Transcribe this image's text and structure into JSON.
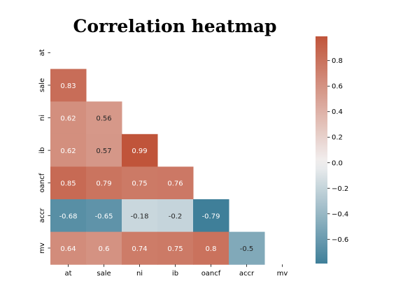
{
  "chart_data": {
    "type": "heatmap",
    "title": "Correlation heatmap",
    "xlabel": "",
    "ylabel": "",
    "variables": [
      "at",
      "sale",
      "ni",
      "ib",
      "oancf",
      "accr",
      "mv"
    ],
    "mask": "upper-triangle-including-diagonal",
    "cells": [
      {
        "row": "sale",
        "col": "at",
        "value": 0.83,
        "label": "0.83"
      },
      {
        "row": "ni",
        "col": "at",
        "value": 0.62,
        "label": "0.62"
      },
      {
        "row": "ni",
        "col": "sale",
        "value": 0.56,
        "label": "0.56"
      },
      {
        "row": "ib",
        "col": "at",
        "value": 0.62,
        "label": "0.62"
      },
      {
        "row": "ib",
        "col": "sale",
        "value": 0.57,
        "label": "0.57"
      },
      {
        "row": "ib",
        "col": "ni",
        "value": 0.99,
        "label": "0.99"
      },
      {
        "row": "oancf",
        "col": "at",
        "value": 0.85,
        "label": "0.85"
      },
      {
        "row": "oancf",
        "col": "sale",
        "value": 0.79,
        "label": "0.79"
      },
      {
        "row": "oancf",
        "col": "ni",
        "value": 0.75,
        "label": "0.75"
      },
      {
        "row": "oancf",
        "col": "ib",
        "value": 0.76,
        "label": "0.76"
      },
      {
        "row": "accr",
        "col": "at",
        "value": -0.68,
        "label": "-0.68"
      },
      {
        "row": "accr",
        "col": "sale",
        "value": -0.65,
        "label": "-0.65"
      },
      {
        "row": "accr",
        "col": "ni",
        "value": -0.18,
        "label": "-0.18"
      },
      {
        "row": "accr",
        "col": "ib",
        "value": -0.2,
        "label": "-0.2"
      },
      {
        "row": "accr",
        "col": "oancf",
        "value": -0.79,
        "label": "-0.79"
      },
      {
        "row": "mv",
        "col": "at",
        "value": 0.64,
        "label": "0.64"
      },
      {
        "row": "mv",
        "col": "sale",
        "value": 0.6,
        "label": "0.6"
      },
      {
        "row": "mv",
        "col": "ni",
        "value": 0.74,
        "label": "0.74"
      },
      {
        "row": "mv",
        "col": "ib",
        "value": 0.75,
        "label": "0.75"
      },
      {
        "row": "mv",
        "col": "oancf",
        "value": 0.8,
        "label": "0.8"
      },
      {
        "row": "mv",
        "col": "accr",
        "value": -0.5,
        "label": "-0.5"
      }
    ],
    "colorbar": {
      "range": [
        -0.79,
        0.99
      ],
      "ticks": [
        0.8,
        0.6,
        0.4,
        0.2,
        0.0,
        -0.2,
        -0.4,
        -0.6
      ],
      "tick_labels": [
        "0.8",
        "0.6",
        "0.4",
        "0.2",
        "0.0",
        "−0.2",
        "−0.4",
        "−0.6"
      ],
      "low_color": "#3f7f99",
      "mid_color": "#f2f1f1",
      "high_color": "#c0543a"
    },
    "grid": false
  }
}
